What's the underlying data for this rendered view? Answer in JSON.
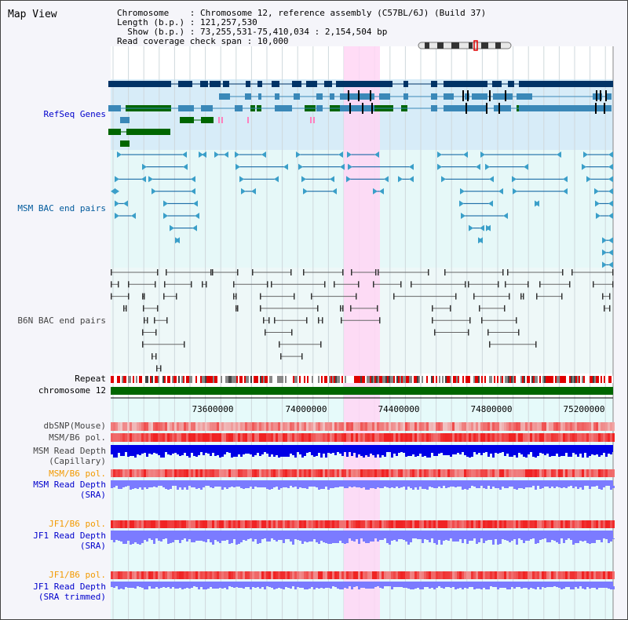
{
  "page_title": "Map View",
  "info": {
    "lines": [
      "Chromosome    : Chromosome 12, reference assembly (C57BL/6J) (Build 37)",
      "Length (b.p.) : 121,257,530",
      "  Show (b.p.) : 73,255,531-75,410,034 : 2,154,504 bp",
      "Read coverage check span : 10,000"
    ]
  },
  "colors": {
    "refseq": "#0000cc",
    "msm": "#005a9c",
    "b6n": "#444444",
    "orange": "#f29a00",
    "navy": "#003366",
    "medium": "#3a88b8",
    "green": "#006600",
    "highlight": "#ffd6f5",
    "coverage_dark": "#0000e6",
    "coverage_light": "#7b7bff"
  },
  "tracks": {
    "refseq": "RefSeq Genes",
    "msm_bac": "MSM BAC end pairs",
    "b6n_bac": "B6N BAC end pairs",
    "repeat": "Repeat",
    "chromosome": "chromosome 12",
    "dbsnp": "dbSNP(Mouse)",
    "msm_b6_pol_1": "MSM/B6 pol.",
    "msm_read_depth_cap_1": "MSM Read Depth",
    "msm_read_depth_cap_2": "(Capillary)",
    "msm_b6_pol_2": "MSM/B6 pol.",
    "msm_read_depth_sra_1": "MSM Read Depth",
    "msm_read_depth_sra_2": "(SRA)",
    "jf1_b6_pol_1": "JF1/B6 pol.",
    "jf1_read_depth_sra_1": "JF1 Read Depth",
    "jf1_read_depth_sra_2": "(SRA)",
    "jf1_b6_pol_2": "JF1/B6 pol.",
    "jf1_read_depth_trim_1": "JF1 Read Depth",
    "jf1_read_depth_trim_2": "(SRA trimmed)"
  },
  "ruler": {
    "ticks": [
      "73600000",
      "74000000",
      "74400000",
      "74800000",
      "75200000"
    ]
  }
}
